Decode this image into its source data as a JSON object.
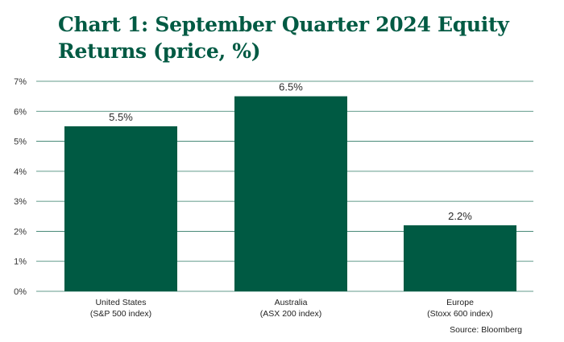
{
  "chart_data": {
    "type": "bar",
    "title": "Chart 1: September Quarter 2024 Equity Returns (price, %)",
    "categories": [
      [
        "United States",
        "(S&P 500 index)"
      ],
      [
        "Australia",
        "(ASX 200 index)"
      ],
      [
        "Europe",
        "(Stoxx 600 index)"
      ]
    ],
    "values": [
      5.5,
      6.5,
      2.2
    ],
    "data_labels": [
      "5.5%",
      "6.5%",
      "2.2%"
    ],
    "y_ticks": [
      0,
      1,
      2,
      3,
      4,
      5,
      6,
      7
    ],
    "y_tick_labels": [
      "0%",
      "1%",
      "2%",
      "3%",
      "4%",
      "5%",
      "6%",
      "7%"
    ],
    "ylim": [
      0,
      7
    ],
    "grid": true,
    "legend": "none",
    "source": "Source: Bloomberg",
    "colors": {
      "bar": "#005a43",
      "title": "#005a43",
      "grid": "#2f7a64"
    }
  }
}
